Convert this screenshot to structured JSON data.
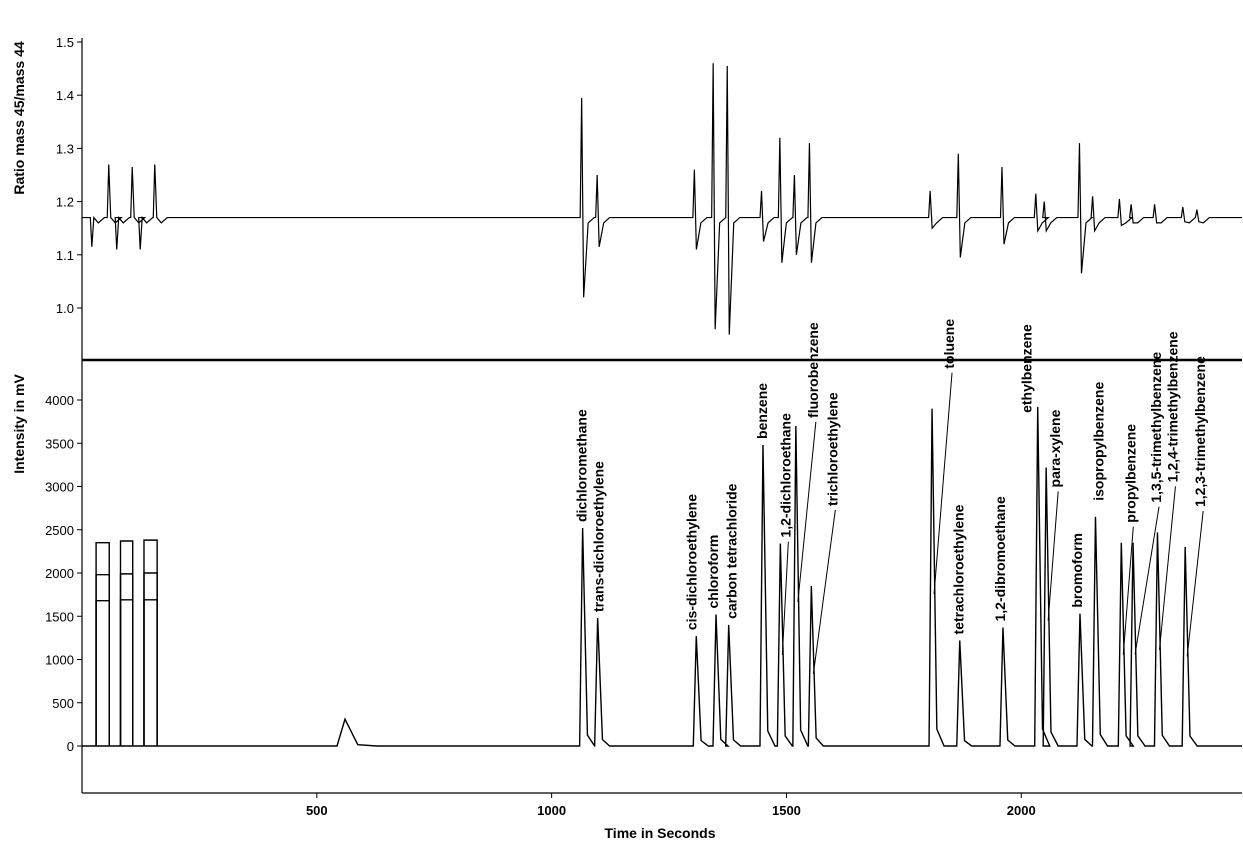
{
  "chart_data": [
    {
      "type": "line",
      "panel": "top",
      "title": "",
      "xlabel": "",
      "ylabel": "Ratio mass 45/mass 44",
      "xlim": [
        0,
        2470
      ],
      "ylim": [
        0.9,
        1.5
      ],
      "yticks": [
        1.0,
        1.1,
        1.2,
        1.3,
        1.4,
        1.5
      ],
      "ytick_labels": [
        "1.0",
        "1.1",
        "1.2",
        "1.3",
        "1.4",
        "1.5"
      ],
      "baseline": 1.17,
      "grid": false,
      "series": [
        {
          "peaks": [
            {
              "x": 22,
              "min": 1.115,
              "max": 1.17
            },
            {
              "x": 58,
              "min": 1.17,
              "max": 1.27
            },
            {
              "x": 75,
              "min": 1.11,
              "max": 1.17
            },
            {
              "x": 108,
              "min": 1.17,
              "max": 1.265
            },
            {
              "x": 125,
              "min": 1.11,
              "max": 1.17
            },
            {
              "x": 156,
              "min": 1.17,
              "max": 1.27
            },
            {
              "x": 1065,
              "min": 1.02,
              "max": 1.395
            },
            {
              "x": 1098,
              "min": 1.115,
              "max": 1.25
            },
            {
              "x": 1305,
              "min": 1.11,
              "max": 1.26
            },
            {
              "x": 1345,
              "min": 0.96,
              "max": 1.46
            },
            {
              "x": 1375,
              "min": 0.95,
              "max": 1.455
            },
            {
              "x": 1448,
              "min": 1.125,
              "max": 1.22
            },
            {
              "x": 1487,
              "min": 1.085,
              "max": 1.32
            },
            {
              "x": 1518,
              "min": 1.1,
              "max": 1.25
            },
            {
              "x": 1550,
              "min": 1.085,
              "max": 1.31
            },
            {
              "x": 1807,
              "min": 1.15,
              "max": 1.22
            },
            {
              "x": 1867,
              "min": 1.095,
              "max": 1.29
            },
            {
              "x": 1960,
              "min": 1.12,
              "max": 1.265
            },
            {
              "x": 2032,
              "min": 1.145,
              "max": 1.215
            },
            {
              "x": 2050,
              "min": 1.145,
              "max": 1.2
            },
            {
              "x": 2125,
              "min": 1.065,
              "max": 1.31
            },
            {
              "x": 2153,
              "min": 1.145,
              "max": 1.21
            },
            {
              "x": 2210,
              "min": 1.155,
              "max": 1.205
            },
            {
              "x": 2235,
              "min": 1.16,
              "max": 1.195
            },
            {
              "x": 2285,
              "min": 1.16,
              "max": 1.195
            },
            {
              "x": 2345,
              "min": 1.162,
              "max": 1.19
            },
            {
              "x": 2375,
              "min": 1.162,
              "max": 1.185
            }
          ]
        }
      ]
    },
    {
      "type": "line",
      "panel": "bottom",
      "title": "",
      "xlabel": "Time in Seconds",
      "ylabel": "Intensity in mV",
      "xlim": [
        0,
        2470
      ],
      "ylim": [
        -550,
        4450
      ],
      "xticks": [
        500,
        1000,
        1500,
        2000
      ],
      "xtick_labels": [
        "500",
        "1000",
        "1500",
        "2000"
      ],
      "yticks": [
        0,
        500,
        1000,
        1500,
        2000,
        2500,
        3000,
        3500,
        4000
      ],
      "ytick_labels": [
        "0",
        "500",
        "1000",
        "1500",
        "2000",
        "2500",
        "3000",
        "3500",
        "4000"
      ],
      "grid": false,
      "reference_pulses": [
        {
          "start": 30,
          "end": 58,
          "heights": [
            2350,
            1980,
            1680
          ]
        },
        {
          "start": 82,
          "end": 108,
          "heights": [
            2370,
            1990,
            1690
          ]
        },
        {
          "start": 132,
          "end": 160,
          "heights": [
            2380,
            2000,
            1690
          ]
        }
      ],
      "series": [
        {
          "peaks": [
            {
              "x": 560,
              "height": 310,
              "label": ""
            },
            {
              "x": 1066,
              "height": 2520,
              "label": "dichloromethane"
            },
            {
              "x": 1098,
              "height": 1480,
              "label": "trans-dichloroethylene"
            },
            {
              "x": 1308,
              "height": 1270,
              "label": "cis-dichloroethylene"
            },
            {
              "x": 1350,
              "height": 1520,
              "label": "chloroform"
            },
            {
              "x": 1377,
              "height": 1400,
              "label": "carbon tetrachloride"
            },
            {
              "x": 1450,
              "height": 3480,
              "label": "benzene"
            },
            {
              "x": 1487,
              "height": 2340,
              "label": "1,2-dichloroethane"
            },
            {
              "x": 1520,
              "height": 3700,
              "label": "fluorobenzene"
            },
            {
              "x": 1553,
              "height": 1850,
              "label": "trichloroethylene"
            },
            {
              "x": 1810,
              "height": 3900,
              "label": "toluene"
            },
            {
              "x": 1869,
              "height": 1220,
              "label": "tetrachloroethylene"
            },
            {
              "x": 1961,
              "height": 1370,
              "label": "1,2-dibromoethane"
            },
            {
              "x": 2035,
              "height": 3920,
              "label": "ethylbenzene"
            },
            {
              "x": 2053,
              "height": 3220,
              "label": "para-xylene"
            },
            {
              "x": 2125,
              "height": 1530,
              "label": "bromoform"
            },
            {
              "x": 2158,
              "height": 2650,
              "label": "isopropylbenzene"
            },
            {
              "x": 2213,
              "height": 2350,
              "label": "propylbenzene"
            },
            {
              "x": 2238,
              "height": 2350,
              "label": "1,3,5-trimethylbenzene"
            },
            {
              "x": 2290,
              "height": 2470,
              "label": "1,2,4-trimethylbenzene"
            },
            {
              "x": 2349,
              "height": 2300,
              "label": "1,2,3-trimethylbenzene"
            }
          ]
        }
      ]
    }
  ]
}
